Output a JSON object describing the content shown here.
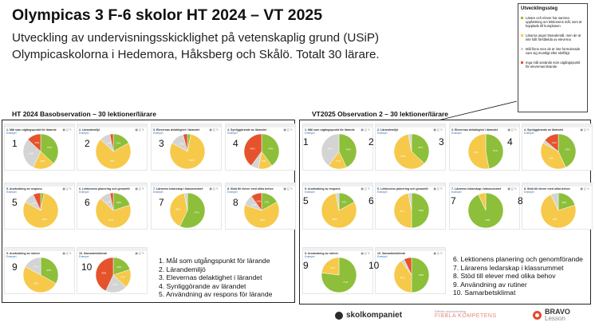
{
  "title": "Olympicas 3 F-6 skolor HT 2024 – VT 2025",
  "subtitle_line1": "Utveckling av undervisningsskicklighet på vetenskaplig grund (USiP)",
  "subtitle_line2": "Olympicaskolorna i Hedemora, Håksberg och Skålö. Totalt 30 lärare.",
  "legend": {
    "title": "Utvecklingssteg",
    "items": [
      {
        "color": "#8dbf3a",
        "text": "Lärare och elever har samma uppfattning om lektionens mål, som är kopplade till kursplanen"
      },
      {
        "color": "#f6c94a",
        "text": "Lärarna anger lärandemål, men de är inte fullt förståelda av eleverna"
      },
      {
        "color": "#d4d4d4",
        "text": "Mål finns men de är inte formulerade vare sig muntligt eller skriftligt"
      },
      {
        "color": "#e5532d",
        "text": "Inga mål används som utgångspunkt för elevernas lärande"
      }
    ]
  },
  "panels": [
    {
      "heading": "HT 2024 Basobservation – 30 lektioner/lärare",
      "cards": [
        {
          "num": "1",
          "title": "1. Mål som utgångspunkt för lärande",
          "link": "Exempel",
          "icons": "▦ ◱ ✎",
          "slices": [
            {
              "c": "#8dbf3a",
              "v": 37
            },
            {
              "c": "#f6c94a",
              "v": 20
            },
            {
              "c": "#d4d4d4",
              "v": 30
            },
            {
              "c": "#e5532d",
              "v": 13
            }
          ]
        },
        {
          "num": "2",
          "title": "2. Lärandemiljö",
          "link": "Exempel",
          "icons": "▦ ◱ ✎",
          "slices": [
            {
              "c": "#8dbf3a",
              "v": 17
            },
            {
              "c": "#f6c94a",
              "v": 70
            },
            {
              "c": "#d4d4d4",
              "v": 10
            },
            {
              "c": "#e5532d",
              "v": 3
            }
          ]
        },
        {
          "num": "3",
          "title": "3. Elevernas delaktighet i lärandet",
          "link": "Exempel",
          "icons": "▦ ◱ ✎",
          "slices": [
            {
              "c": "#8dbf3a",
              "v": 3
            },
            {
              "c": "#f6c94a",
              "v": 80
            },
            {
              "c": "#d4d4d4",
              "v": 13
            },
            {
              "c": "#e5532d",
              "v": 4
            }
          ]
        },
        {
          "num": "4",
          "title": "4. Synliggörande av lärandet",
          "link": "Exempel",
          "icons": "▦ ◱ ✎",
          "slices": [
            {
              "c": "#8dbf3a",
              "v": 40
            },
            {
              "c": "#f6c94a",
              "v": 13
            },
            {
              "c": "#d4d4d4",
              "v": 7
            },
            {
              "c": "#e5532d",
              "v": 40
            }
          ]
        },
        {
          "num": "5",
          "title": "5. Användning av respons",
          "link": "Exempel",
          "icons": "▦ ◱ ✎",
          "slices": [
            {
              "c": "#8dbf3a",
              "v": 3
            },
            {
              "c": "#f6c94a",
              "v": 80
            },
            {
              "c": "#d4d4d4",
              "v": 10
            },
            {
              "c": "#e5532d",
              "v": 7
            }
          ]
        },
        {
          "num": "6",
          "title": "6. Lektionens planering och genomförande",
          "link": "Exempel",
          "icons": "▦ ◱ ✎",
          "slices": [
            {
              "c": "#8dbf3a",
              "v": 20
            },
            {
              "c": "#f6c94a",
              "v": 67
            },
            {
              "c": "#d4d4d4",
              "v": 10
            },
            {
              "c": "#e5532d",
              "v": 3
            }
          ]
        },
        {
          "num": "7",
          "title": "7. Lärarens ledarskap i klassrummet",
          "link": "Exempel",
          "icons": "▦ ◱ ✎",
          "slices": [
            {
              "c": "#8dbf3a",
              "v": 57
            },
            {
              "c": "#f6c94a",
              "v": 40
            },
            {
              "c": "#d4d4d4",
              "v": 3
            },
            {
              "c": "#e5532d",
              "v": 0
            }
          ]
        },
        {
          "num": "8",
          "title": "8. Stöd till elever med olika behov",
          "link": "Exempel",
          "icons": "▦ ◱ ✎",
          "slices": [
            {
              "c": "#8dbf3a",
              "v": 17
            },
            {
              "c": "#f6c94a",
              "v": 63
            },
            {
              "c": "#d4d4d4",
              "v": 10
            },
            {
              "c": "#e5532d",
              "v": 10
            }
          ]
        },
        {
          "num": "9",
          "title": "9. Användning av rutiner",
          "link": "Exempel",
          "icons": "▦ ◱ ✎",
          "slices": [
            {
              "c": "#8dbf3a",
              "v": 33
            },
            {
              "c": "#f6c94a",
              "v": 50
            },
            {
              "c": "#d4d4d4",
              "v": 17
            },
            {
              "c": "#e5532d",
              "v": 0
            }
          ]
        },
        {
          "num": "10",
          "title": "10. Samarbetsklimat",
          "link": "Exempel",
          "icons": "▦ ◱ ✎",
          "slices": [
            {
              "c": "#8dbf3a",
              "v": 20
            },
            {
              "c": "#f6c94a",
              "v": 17
            },
            {
              "c": "#d4d4d4",
              "v": 20
            },
            {
              "c": "#e5532d",
              "v": 43
            }
          ]
        }
      ],
      "list": [
        "1. Mål som utgångspunkt för lärande",
        "2. Lärandemiljö",
        "3. Elevernas delaktighet i lärandet",
        "4. Synliggörande av lärandet",
        "5. Användning av respons för lärande"
      ]
    },
    {
      "heading": "VT2025 Observation 2 – 30 lektioner/lärare",
      "cards": [
        {
          "num": "1",
          "title": "1. Mål som utgångspunkt för lärande",
          "link": "Exempel",
          "icons": "▦ ◱ ✎",
          "slices": [
            {
              "c": "#8dbf3a",
              "v": 43
            },
            {
              "c": "#f6c94a",
              "v": 17
            },
            {
              "c": "#d4d4d4",
              "v": 40
            },
            {
              "c": "#e5532d",
              "v": 0
            }
          ]
        },
        {
          "num": "2",
          "title": "2. Lärandemiljö",
          "link": "Exempel",
          "icons": "▦ ◱ ✎",
          "slices": [
            {
              "c": "#8dbf3a",
              "v": 37
            },
            {
              "c": "#f6c94a",
              "v": 60
            },
            {
              "c": "#d4d4d4",
              "v": 3
            },
            {
              "c": "#e5532d",
              "v": 0
            }
          ]
        },
        {
          "num": "3",
          "title": "3. Elevernas delaktighet i lärandet",
          "link": "Exempel",
          "icons": "▦ ◱ ✎",
          "slices": [
            {
              "c": "#8dbf3a",
              "v": 47
            },
            {
              "c": "#f6c94a",
              "v": 53
            },
            {
              "c": "#d4d4d4",
              "v": 0
            },
            {
              "c": "#e5532d",
              "v": 0
            }
          ]
        },
        {
          "num": "4",
          "title": "4. Synliggörande av lärandet",
          "link": "Exempel",
          "icons": "▦ ◱ ✎",
          "slices": [
            {
              "c": "#8dbf3a",
              "v": 43
            },
            {
              "c": "#f6c94a",
              "v": 40
            },
            {
              "c": "#d4d4d4",
              "v": 3
            },
            {
              "c": "#e5532d",
              "v": 14
            }
          ]
        },
        {
          "num": "5",
          "title": "5. Användning av respons",
          "link": "Exempel",
          "icons": "▦ ◱ ✎",
          "slices": [
            {
              "c": "#8dbf3a",
              "v": 17
            },
            {
              "c": "#f6c94a",
              "v": 80
            },
            {
              "c": "#d4d4d4",
              "v": 3
            },
            {
              "c": "#e5532d",
              "v": 0
            }
          ]
        },
        {
          "num": "6",
          "title": "6. Lektionens planering och genomförande",
          "link": "Exempel",
          "icons": "▦ ◱ ✎",
          "slices": [
            {
              "c": "#8dbf3a",
              "v": 50
            },
            {
              "c": "#f6c94a",
              "v": 47
            },
            {
              "c": "#d4d4d4",
              "v": 3
            },
            {
              "c": "#e5532d",
              "v": 0
            }
          ]
        },
        {
          "num": "7",
          "title": "7. Lärarens ledarskap i klassrummet",
          "link": "Exempel",
          "icons": "▦ ◱ ✎",
          "slices": [
            {
              "c": "#8dbf3a",
              "v": 93
            },
            {
              "c": "#f6c94a",
              "v": 7
            },
            {
              "c": "#d4d4d4",
              "v": 0
            },
            {
              "c": "#e5532d",
              "v": 0
            }
          ]
        },
        {
          "num": "8",
          "title": "8. Stöd till elever med olika behov",
          "link": "Exempel",
          "icons": "▦ ◱ ✎",
          "slices": [
            {
              "c": "#8dbf3a",
              "v": 20
            },
            {
              "c": "#f6c94a",
              "v": 73
            },
            {
              "c": "#d4d4d4",
              "v": 7
            },
            {
              "c": "#e5532d",
              "v": 0
            }
          ]
        },
        {
          "num": "9",
          "title": "9. Användning av rutiner",
          "link": "Exempel",
          "icons": "▦ ◱ ✎",
          "slices": [
            {
              "c": "#8dbf3a",
              "v": 77
            },
            {
              "c": "#f6c94a",
              "v": 23
            },
            {
              "c": "#d4d4d4",
              "v": 0
            },
            {
              "c": "#e5532d",
              "v": 0
            }
          ]
        },
        {
          "num": "10",
          "title": "10. Samarbetsklimat",
          "link": "Exempel",
          "icons": "▦ ◱ ✎",
          "slices": [
            {
              "c": "#8dbf3a",
              "v": 50
            },
            {
              "c": "#f6c94a",
              "v": 40
            },
            {
              "c": "#d4d4d4",
              "v": 3
            },
            {
              "c": "#e5532d",
              "v": 7
            }
          ]
        }
      ],
      "list": [
        "6. Lektionens planering och genomförande",
        "7. Lärarens ledarskap i klassrummet",
        "8. Stöd till elever med olika behov",
        "9. Användning av rutiner",
        "10. Samarbetsklimat"
      ]
    }
  ],
  "logos": {
    "skolkompaniet": "skolkompaniet",
    "fibbla_small": "Effektiv skolutveckling",
    "fibbla": "FIBBLA KOMPETENS",
    "bravo": "BRAVO",
    "lesson": "Lesson"
  }
}
